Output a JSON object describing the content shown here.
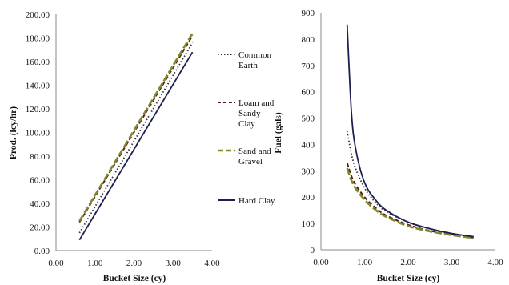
{
  "chart_data": [
    {
      "type": "line",
      "xlabel": "Bucket Size (cy)",
      "ylabel": "Prod. (lcy/hr)",
      "xlim": [
        0,
        4
      ],
      "ylim": [
        0,
        200
      ],
      "x_ticks": [
        "0.00",
        "1.00",
        "2.00",
        "3.00",
        "4.00"
      ],
      "y_ticks": [
        "0.00",
        "20.00",
        "40.00",
        "60.00",
        "80.00",
        "100.00",
        "120.00",
        "140.00",
        "160.00",
        "180.00",
        "200.00"
      ],
      "grid": false,
      "legend": "right",
      "series": [
        {
          "name": "Common Earth",
          "color": "#333333",
          "dash": "dotted",
          "x": [
            0.6,
            3.5
          ],
          "y": [
            15,
            176
          ]
        },
        {
          "name": "Loam and Sandy Clay",
          "color": "#5a1a1a",
          "dash": "dashed",
          "x": [
            0.6,
            3.5
          ],
          "y": [
            24,
            182
          ]
        },
        {
          "name": "Sand and Gravel",
          "color": "#7d8c2a",
          "dash": "longdash",
          "x": [
            0.6,
            3.5
          ],
          "y": [
            25,
            184
          ]
        },
        {
          "name": "Hard Clay",
          "color": "#1c1f4f",
          "dash": "solid",
          "x": [
            0.6,
            3.5
          ],
          "y": [
            9,
            168
          ]
        }
      ]
    },
    {
      "type": "line",
      "xlabel": "Bucket Size (cy)",
      "ylabel": "Fuel (gals)",
      "xlim": [
        0,
        4
      ],
      "ylim": [
        0,
        900
      ],
      "x_ticks": [
        "0.00",
        "1.00",
        "2.00",
        "3.00",
        "4.00"
      ],
      "y_ticks": [
        "0",
        "100",
        "200",
        "300",
        "400",
        "500",
        "600",
        "700",
        "800",
        "900"
      ],
      "grid": false,
      "series": [
        {
          "name": "Common Earth",
          "color": "#333333",
          "dash": "dotted",
          "x": [
            0.6,
            0.75,
            1.0,
            1.25,
            1.5,
            2.0,
            2.5,
            3.0,
            3.5
          ],
          "y": [
            450,
            330,
            235,
            180,
            145,
            105,
            80,
            62,
            48
          ]
        },
        {
          "name": "Loam and Sandy Clay",
          "color": "#5a1a1a",
          "dash": "dashed",
          "x": [
            0.6,
            0.75,
            1.0,
            1.25,
            1.5,
            2.0,
            2.5,
            3.0,
            3.5
          ],
          "y": [
            330,
            260,
            200,
            160,
            130,
            95,
            72,
            58,
            46
          ]
        },
        {
          "name": "Sand and Gravel",
          "color": "#7d8c2a",
          "dash": "longdash",
          "x": [
            0.6,
            0.75,
            1.0,
            1.25,
            1.5,
            2.0,
            2.5,
            3.0,
            3.5
          ],
          "y": [
            310,
            245,
            190,
            152,
            125,
            90,
            70,
            56,
            45
          ]
        },
        {
          "name": "Hard Clay",
          "color": "#1c1f4f",
          "dash": "solid",
          "x": [
            0.6,
            0.7,
            0.8,
            1.0,
            1.25,
            1.5,
            2.0,
            2.5,
            3.0,
            3.5
          ],
          "y": [
            855,
            520,
            380,
            255,
            190,
            150,
            105,
            80,
            62,
            50
          ]
        }
      ]
    }
  ]
}
